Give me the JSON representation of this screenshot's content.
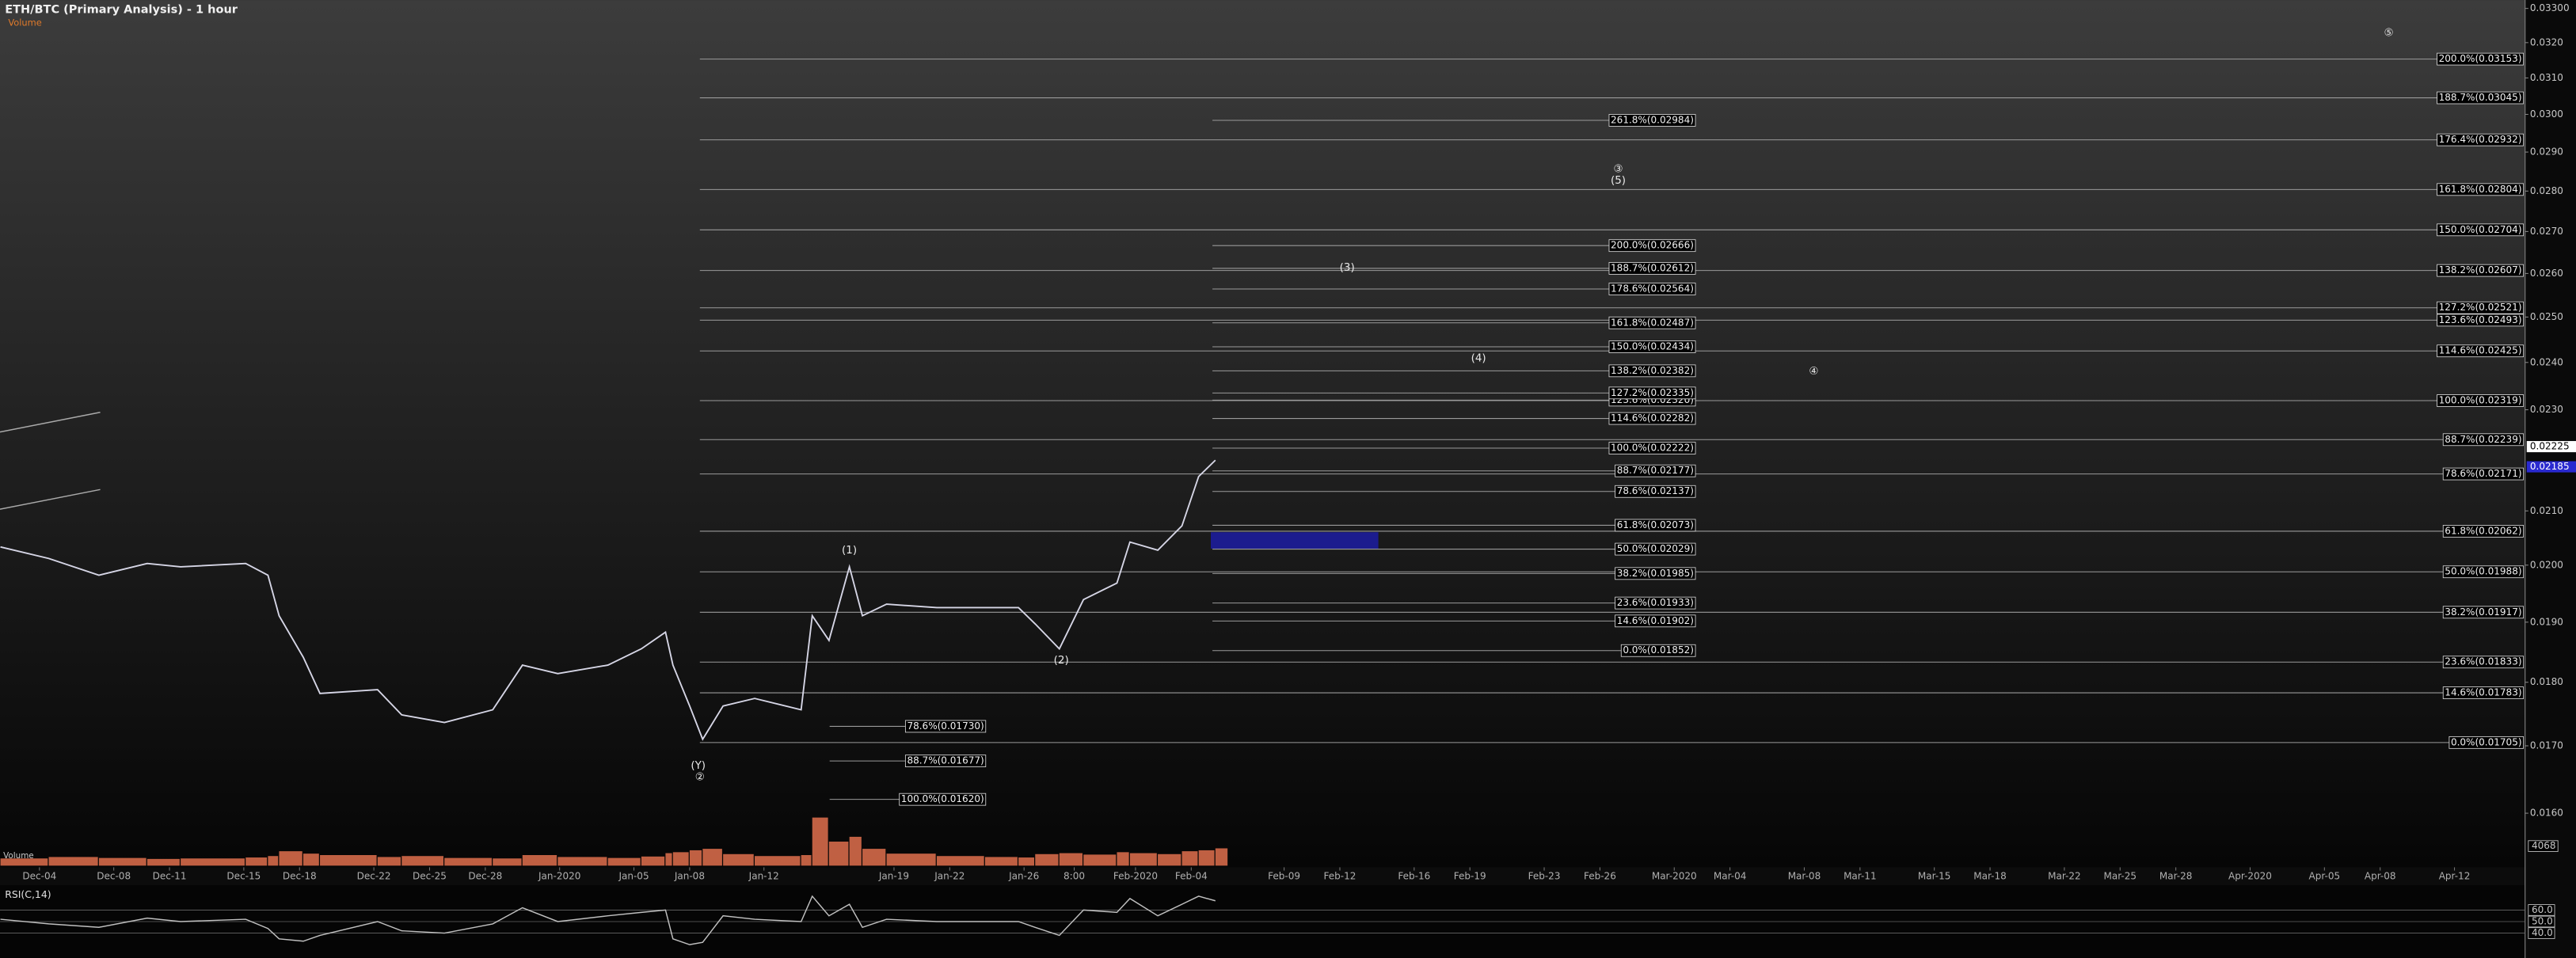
{
  "chart_data": {
    "type": "line",
    "title": "ETH/BTC (Primary Analysis) - 1 hour",
    "log": true,
    "color": "#d6d6e6",
    "xlim": [
      0.876,
      136.8
    ],
    "ylim": [
      0.01524,
      0.03325
    ],
    "yticks": [
      {
        "value": 0.016,
        "label": "0.0160"
      },
      {
        "value": 0.017,
        "label": "0.0170"
      },
      {
        "value": 0.018,
        "label": "0.0180"
      },
      {
        "value": 0.019,
        "label": "0.0190"
      },
      {
        "value": 0.02,
        "label": "0.0200"
      },
      {
        "value": 0.021,
        "label": "0.0210"
      },
      {
        "value": 0.023,
        "label": "0.0230"
      },
      {
        "value": 0.024,
        "label": "0.0240"
      },
      {
        "value": 0.025,
        "label": "0.0250"
      },
      {
        "value": 0.026,
        "label": "0.0260"
      },
      {
        "value": 0.027,
        "label": "0.0270"
      },
      {
        "value": 0.028,
        "label": "0.0280"
      },
      {
        "value": 0.029,
        "label": "0.0290"
      },
      {
        "value": 0.03,
        "label": "0.0300"
      },
      {
        "value": 0.031,
        "label": "0.0310"
      },
      {
        "value": 0.032,
        "label": "0.0320"
      },
      {
        "value": 0.033,
        "label": "0.03300"
      }
    ],
    "xticks": [
      {
        "value": 3,
        "label": "Dec-04"
      },
      {
        "value": 7,
        "label": "Dec-08"
      },
      {
        "value": 10,
        "label": "Dec-11"
      },
      {
        "value": 14,
        "label": "Dec-15"
      },
      {
        "value": 17,
        "label": "Dec-18"
      },
      {
        "value": 21,
        "label": "Dec-22"
      },
      {
        "value": 24,
        "label": "Dec-25"
      },
      {
        "value": 27,
        "label": "Dec-28"
      },
      {
        "value": 31,
        "label": "Jan-2020"
      },
      {
        "value": 35,
        "label": "Jan-05"
      },
      {
        "value": 38,
        "label": "Jan-08"
      },
      {
        "value": 42,
        "label": "Jan-12"
      },
      {
        "value": 49,
        "label": "Jan-19"
      },
      {
        "value": 52,
        "label": "Jan-22"
      },
      {
        "value": 56,
        "label": "Jan-26"
      },
      {
        "value": 58.7,
        "label": "8:00"
      },
      {
        "value": 62,
        "label": "Feb-2020"
      },
      {
        "value": 65,
        "label": "Feb-04"
      },
      {
        "value": 70,
        "label": "Feb-09"
      },
      {
        "value": 73,
        "label": "Feb-12"
      },
      {
        "value": 77,
        "label": "Feb-16"
      },
      {
        "value": 80,
        "label": "Feb-19"
      },
      {
        "value": 84,
        "label": "Feb-23"
      },
      {
        "value": 87,
        "label": "Feb-26"
      },
      {
        "value": 91,
        "label": "Mar-2020"
      },
      {
        "value": 94,
        "label": "Mar-04"
      },
      {
        "value": 98,
        "label": "Mar-08"
      },
      {
        "value": 101,
        "label": "Mar-11"
      },
      {
        "value": 105,
        "label": "Mar-15"
      },
      {
        "value": 108,
        "label": "Mar-18"
      },
      {
        "value": 112,
        "label": "Mar-22"
      },
      {
        "value": 115,
        "label": "Mar-25"
      },
      {
        "value": 118,
        "label": "Mar-28"
      },
      {
        "value": 122,
        "label": "Apr-2020"
      },
      {
        "value": 126,
        "label": "Apr-05"
      },
      {
        "value": 129,
        "label": "Apr-08"
      },
      {
        "value": 133,
        "label": "Apr-12"
      }
    ],
    "x": [
      0.9,
      3.5,
      6.2,
      8.8,
      10.6,
      14.1,
      15.3,
      15.9,
      17.2,
      18.1,
      21.2,
      22.5,
      24.8,
      27.4,
      29.0,
      30.9,
      33.6,
      35.4,
      36.7,
      37.1,
      38.0,
      38.7,
      39.8,
      41.5,
      44.0,
      44.6,
      45.5,
      46.6,
      47.3,
      48.6,
      51.3,
      53.9,
      55.7,
      56.6,
      57.9,
      59.2,
      61.0,
      61.7,
      63.2,
      64.5,
      65.4,
      66.3
    ],
    "values": [
      0.02033,
      0.02012,
      0.01982,
      0.02003,
      0.01997,
      0.02003,
      0.01982,
      0.01911,
      0.01841,
      0.01782,
      0.01788,
      0.01748,
      0.01736,
      0.01756,
      0.01828,
      0.01814,
      0.01828,
      0.01855,
      0.01883,
      0.01828,
      0.01762,
      0.0171,
      0.01762,
      0.01774,
      0.01756,
      0.01911,
      0.01869,
      0.01997,
      0.01911,
      0.01931,
      0.01925,
      0.01925,
      0.01925,
      0.01897,
      0.01855,
      0.01939,
      0.01968,
      0.02042,
      0.02027,
      0.02072,
      0.02166,
      0.02198
    ],
    "price_markers": [
      0.02225,
      0.02185
    ],
    "fib_sets": [
      {
        "levels": [
          {
            "value": 0.03153,
            "label": "200.0%(0.03153)"
          },
          {
            "value": 0.03045,
            "label": "188.7%(0.03045)"
          },
          {
            "value": 0.02932,
            "label": "176.4%(0.02932)"
          },
          {
            "value": 0.02804,
            "label": "161.8%(0.02804)"
          },
          {
            "value": 0.02704,
            "label": "150.0%(0.02704)"
          },
          {
            "value": 0.02607,
            "label": "138.2%(0.02607)"
          },
          {
            "value": 0.02521,
            "label": "127.2%(0.02521)"
          },
          {
            "value": 0.02493,
            "label": "123.6%(0.02493)"
          },
          {
            "value": 0.02425,
            "label": "114.6%(0.02425)"
          },
          {
            "value": 0.02319,
            "label": "100.0%(0.02319)"
          },
          {
            "value": 0.02239,
            "label": "88.7%(0.02239)"
          },
          {
            "value": 0.02171,
            "label": "78.6%(0.02171)"
          },
          {
            "value": 0.02062,
            "label": "61.8%(0.02062)"
          },
          {
            "value": 0.01988,
            "label": "50.0%(0.01988)"
          },
          {
            "value": 0.01917,
            "label": "38.2%(0.01917)"
          },
          {
            "value": 0.01833,
            "label": "23.6%(0.01833)"
          },
          {
            "value": 0.01783,
            "label": "14.6%(0.01783)"
          },
          {
            "value": 0.01705,
            "label": "0.0%(0.01705)"
          }
        ]
      },
      {
        "levels": [
          {
            "value": 0.02984,
            "label": "261.8%(0.02984)"
          },
          {
            "value": 0.02666,
            "label": "200.0%(0.02666)"
          },
          {
            "value": 0.02612,
            "label": "188.7%(0.02612)"
          },
          {
            "value": 0.02564,
            "label": "178.6%(0.02564)"
          },
          {
            "value": 0.02487,
            "label": "161.8%(0.02487)"
          },
          {
            "value": 0.02434,
            "label": "150.0%(0.02434)"
          },
          {
            "value": 0.02382,
            "label": "138.2%(0.02382)"
          },
          {
            "value": 0.0232,
            "label": "123.6%(0.02320)"
          },
          {
            "value": 0.02335,
            "label": "127.2%(0.02335)"
          },
          {
            "value": 0.02282,
            "label": "114.6%(0.02282)"
          },
          {
            "value": 0.02222,
            "label": "100.0%(0.02222)"
          },
          {
            "value": 0.02177,
            "label": "88.7%(0.02177)"
          },
          {
            "value": 0.02137,
            "label": "78.6%(0.02137)"
          },
          {
            "value": 0.02073,
            "label": "61.8%(0.02073)"
          },
          {
            "value": 0.02029,
            "label": "50.0%(0.02029)"
          },
          {
            "value": 0.01985,
            "label": "38.2%(0.01985)"
          },
          {
            "value": 0.01933,
            "label": "23.6%(0.01933)"
          },
          {
            "value": 0.01902,
            "label": "14.6%(0.01902)"
          },
          {
            "value": 0.01852,
            "label": "0.0%(0.01852)"
          }
        ]
      },
      {
        "levels": [
          {
            "value": 0.0173,
            "label": "78.6%(0.01730)"
          },
          {
            "value": 0.01677,
            "label": "88.7%(0.01677)"
          },
          {
            "value": 0.0162,
            "label": "100.0%(0.01620)"
          }
        ]
      }
    ],
    "wave_labels": [
      "(1)",
      "(2)",
      "(Y)",
      "②",
      "(3)",
      "(4)",
      "③",
      "(5)",
      "④",
      "⑤"
    ],
    "volume": {
      "label": "Volume",
      "color": "#e0704e",
      "ylim": [
        0,
        14000
      ],
      "yticks": [
        4068
      ],
      "values": [
        1500,
        1800,
        1600,
        1400,
        1500,
        1700,
        2000,
        3000,
        2500,
        2200,
        1800,
        2000,
        1600,
        1500,
        2200,
        1800,
        1600,
        1900,
        2600,
        2800,
        3200,
        3500,
        2400,
        2000,
        2200,
        10000,
        5000,
        6000,
        3500,
        2500,
        2000,
        1800,
        1700,
        2400,
        2600,
        2300,
        2800,
        2600,
        2400,
        3000,
        3200,
        3600
      ]
    },
    "rsi": {
      "label": "RSI(C,14)",
      "color": "#c0c0c0",
      "ylim": [
        23,
        70
      ],
      "yticks": [
        {
          "value": 60,
          "label": "60.0"
        },
        {
          "value": 50,
          "label": "50.0"
        },
        {
          "value": 40,
          "label": "40.0"
        }
      ],
      "values": [
        52,
        48,
        45,
        53,
        50,
        52,
        44,
        35,
        33,
        38,
        50,
        42,
        40,
        48,
        62,
        50,
        55,
        58,
        60,
        35,
        30,
        32,
        55,
        52,
        50,
        72,
        55,
        65,
        45,
        52,
        50,
        50,
        50,
        45,
        38,
        60,
        58,
        70,
        55,
        65,
        72,
        68
      ]
    }
  }
}
